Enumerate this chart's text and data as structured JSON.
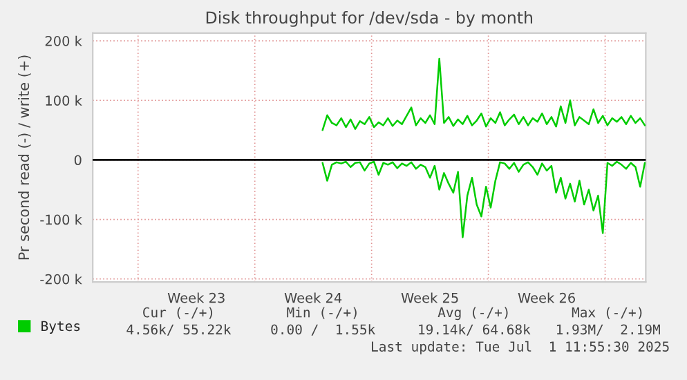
{
  "chart_data": {
    "type": "line",
    "title": "Disk throughput for /dev/sda - by month",
    "ylabel": "Pr second read (-) / write (+)",
    "categories": [
      null,
      null,
      null,
      null,
      null,
      null,
      null,
      null,
      null,
      null,
      null,
      null,
      null,
      null,
      null,
      null,
      null,
      null,
      null,
      null,
      null,
      null,
      "Week 23",
      null,
      null,
      null,
      null,
      null,
      null,
      null,
      null,
      null,
      null,
      null,
      null,
      null,
      null,
      null,
      null,
      null,
      null,
      null,
      null,
      null,
      null,
      null,
      null,
      "Week 24",
      null,
      null,
      null,
      null,
      null,
      null,
      null,
      null,
      null,
      null,
      null,
      null,
      null,
      null,
      null,
      null,
      null,
      null,
      null,
      null,
      null,
      null,
      null,
      null,
      "Week 25",
      null,
      null,
      null,
      null,
      null,
      null,
      null,
      null,
      null,
      null,
      null,
      null,
      null,
      null,
      null,
      null,
      null,
      null,
      null,
      null,
      null,
      null,
      null,
      null,
      "Week 26",
      null,
      null,
      null,
      null,
      null,
      null,
      null,
      null,
      null,
      null,
      null,
      null,
      null,
      null,
      null,
      null,
      null,
      null,
      null,
      null,
      null
    ],
    "series": [
      {
        "name": "Bytes",
        "color": "#00cc00",
        "values": [
          null,
          null,
          null,
          null,
          null,
          null,
          null,
          null,
          null,
          null,
          null,
          null,
          null,
          null,
          null,
          null,
          null,
          null,
          null,
          null,
          null,
          null,
          null,
          null,
          null,
          null,
          null,
          null,
          null,
          null,
          null,
          null,
          null,
          null,
          null,
          null,
          null,
          null,
          null,
          null,
          null,
          null,
          null,
          null,
          null,
          null,
          null,
          null,
          null,
          50000,
          75000,
          62000,
          58000,
          70000,
          55000,
          68000,
          52000,
          65000,
          60000,
          72000,
          55000,
          63000,
          58000,
          70000,
          57000,
          66000,
          60000,
          74000,
          88000,
          58000,
          70000,
          62000,
          75000,
          60000,
          170000,
          62000,
          72000,
          57000,
          68000,
          60000,
          74000,
          58000,
          66000,
          78000,
          56000,
          70000,
          62000,
          80000,
          58000,
          68000,
          76000,
          60000,
          72000,
          58000,
          70000,
          64000,
          78000,
          60000,
          72000,
          56000,
          90000,
          62000,
          100000,
          58000,
          72000,
          66000,
          60000,
          85000,
          62000,
          74000,
          58000,
          70000,
          64000,
          72000,
          60000,
          74000,
          62000,
          70000,
          58000
        ]
      },
      {
        "color": "#00cc00",
        "values": [
          null,
          null,
          null,
          null,
          null,
          null,
          null,
          null,
          null,
          null,
          null,
          null,
          null,
          null,
          null,
          null,
          null,
          null,
          null,
          null,
          null,
          null,
          null,
          null,
          null,
          null,
          null,
          null,
          null,
          null,
          null,
          null,
          null,
          null,
          null,
          null,
          null,
          null,
          null,
          null,
          null,
          null,
          null,
          null,
          null,
          null,
          null,
          null,
          null,
          -5000,
          -35000,
          -8000,
          -4000,
          -6000,
          -3000,
          -12000,
          -5000,
          -4000,
          -18000,
          -6000,
          -3000,
          -25000,
          -5000,
          -8000,
          -4000,
          -14000,
          -6000,
          -10000,
          -4000,
          -15000,
          -8000,
          -12000,
          -30000,
          -10000,
          -50000,
          -22000,
          -40000,
          -55000,
          -20000,
          -130000,
          -60000,
          -30000,
          -75000,
          -95000,
          -45000,
          -80000,
          -35000,
          -4000,
          -6000,
          -15000,
          -5000,
          -20000,
          -8000,
          -4000,
          -12000,
          -25000,
          -6000,
          -18000,
          -10000,
          -55000,
          -30000,
          -65000,
          -40000,
          -70000,
          -35000,
          -75000,
          -50000,
          -85000,
          -60000,
          -123000,
          -5000,
          -10000,
          -3000,
          -8000,
          -15000,
          -5000,
          -12000,
          -45000,
          -5000
        ]
      }
    ],
    "ylim": [
      -205000,
      213000
    ],
    "yticks": [
      {
        "value": -200000,
        "label": "-200 k"
      },
      {
        "value": -100000,
        "label": "-100 k"
      },
      0,
      {
        "value": 100000,
        "label": "100 k"
      },
      {
        "value": 200000,
        "label": "200 k"
      }
    ],
    "ref_lines": [
      {
        "axis": "y",
        "value": 0,
        "color": "#000000"
      }
    ],
    "grid": true,
    "legend": "bottom left",
    "annotations": [
      "Cur (-/+)",
      "Min (-/+)",
      "Avg (-/+)",
      "Max (-/+)",
      "4.56k/ 55.22k",
      "0.00 /  1.55k",
      "19.14k/ 64.68k",
      "1.93M/  2.19M",
      "Last update: Tue Jul  1 11:55:30 2025"
    ]
  }
}
